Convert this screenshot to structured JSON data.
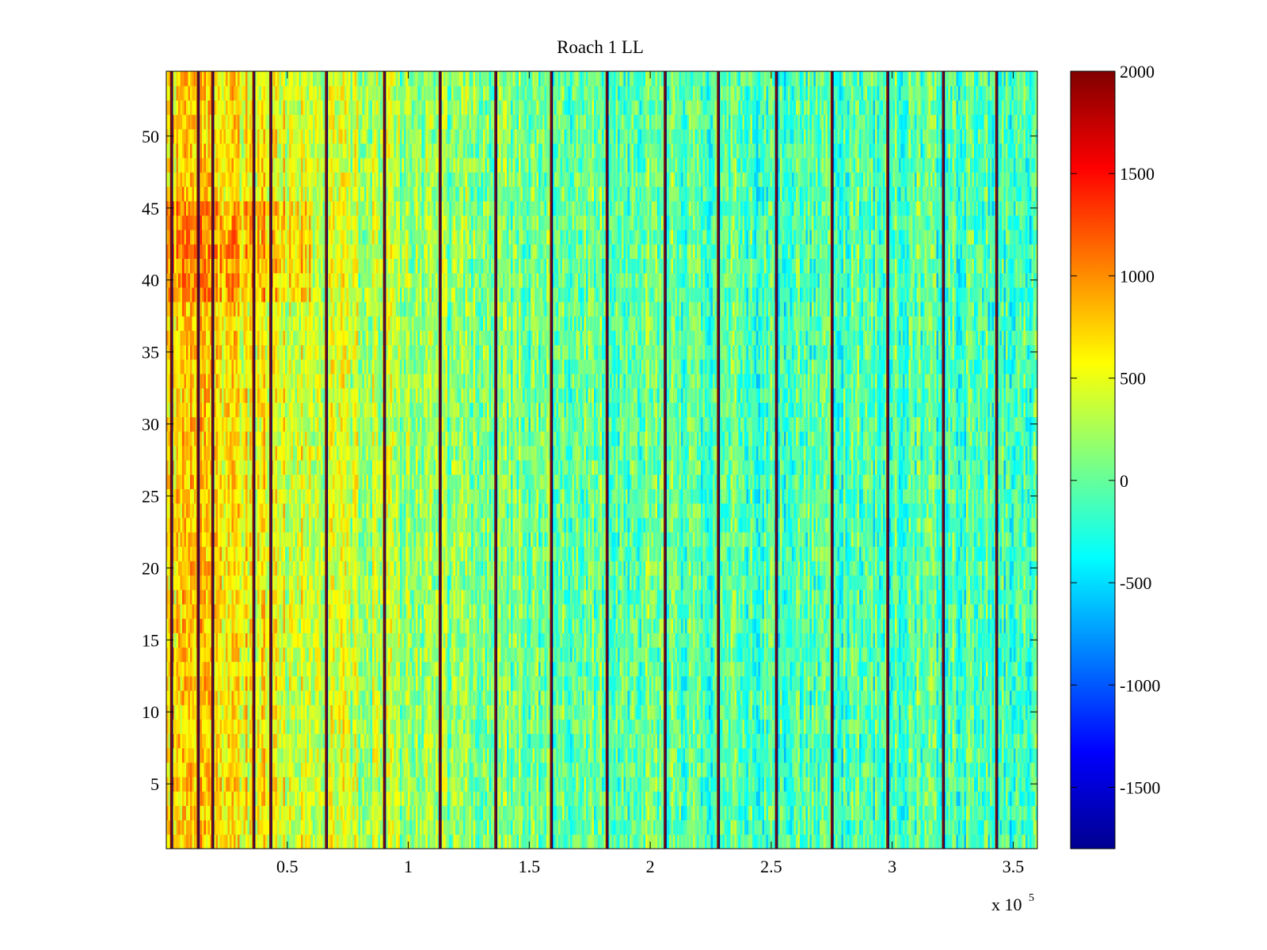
{
  "chart_data": {
    "type": "heatmap",
    "title": "Roach 1 LL",
    "xlabel": "",
    "ylabel": "",
    "x_exponent_label": "x 10",
    "x_exponent": "5",
    "xlim": [
      0,
      360000
    ],
    "ylim": [
      0.5,
      54.5
    ],
    "x_ticks": [
      50000,
      100000,
      150000,
      200000,
      250000,
      300000,
      350000
    ],
    "x_tick_labels": [
      "0.5",
      "1",
      "1.5",
      "2",
      "2.5",
      "3",
      "3.5"
    ],
    "y_ticks": [
      5,
      10,
      15,
      20,
      25,
      30,
      35,
      40,
      45,
      50
    ],
    "y_tick_labels": [
      "5",
      "10",
      "15",
      "20",
      "25",
      "30",
      "35",
      "40",
      "45",
      "50"
    ],
    "n_rows": 54,
    "colormap": "jet",
    "clim": [
      -1800,
      2000
    ],
    "colorbar_ticks": [
      2000,
      1500,
      1000,
      500,
      0,
      -500,
      -1000,
      -1500
    ],
    "colorbar_tick_labels": [
      "2000",
      "1500",
      "1000",
      "500",
      "0",
      "-500",
      "-1000",
      "-1500"
    ],
    "dark_stripe_x": [
      2000,
      13000,
      19000,
      36000,
      43000,
      66000,
      90000,
      113000,
      136000,
      159000,
      182000,
      206000,
      228000,
      252000,
      275000,
      298000,
      321000,
      343000
    ],
    "value_trend": {
      "x": [
        0,
        20000,
        50000,
        100000,
        150000,
        200000,
        250000,
        300000,
        360000
      ],
      "mean_value": [
        650,
        700,
        450,
        200,
        50,
        0,
        -100,
        -50,
        -100
      ]
    }
  }
}
